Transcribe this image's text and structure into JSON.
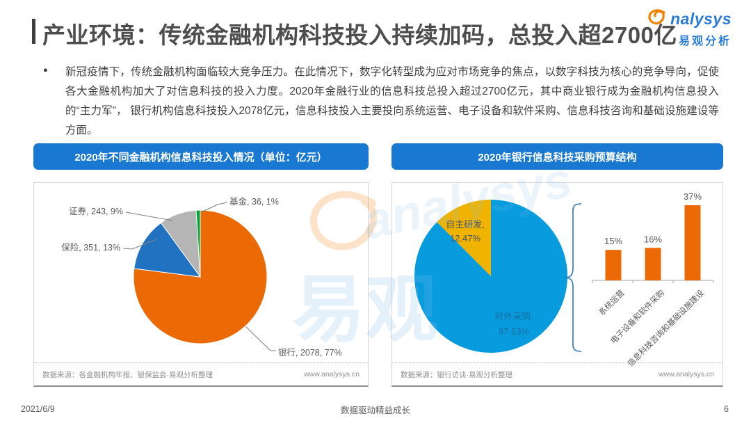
{
  "page": {
    "title": "产业环境：传统金融机构科技投入持续加码，总投入超2700亿",
    "logo": {
      "brand": "nalysys",
      "brand_cn": "易观分析"
    },
    "bullet_text": "新冠疫情下，传统金融机构面临较大竞争压力。在此情况下，数字化转型成为应对市场竞争的焦点，以数字科技为核心的竞争导向，促使各大金融机构加大了对信息科技的投入力度。2020年金融行业的信息科技总投入超过2700亿元，其中商业银行成为金融机构信息投入的“主力军”， 银行机构信息科技投入2078亿元，信息科技投入主要投向系统运营、电子设备和软件采购、信息科技咨询和基础设施建设等方面。",
    "footer": {
      "date": "2021/6/9",
      "slogan": "数据驱动精益成长",
      "page_number": "6"
    },
    "watermark_cn": "易观",
    "watermark_en": "analysys"
  },
  "chart_data": [
    {
      "type": "pie",
      "title": "2020年不同金融机构信息科技投入情况（单位：亿元）",
      "unit": "亿元",
      "slices": [
        {
          "label": "银行",
          "value": 2078,
          "pct": 77,
          "color": "#EB6A05",
          "display": "银行, 2078, 77%"
        },
        {
          "label": "保险",
          "value": 351,
          "pct": 13,
          "color": "#2173C2",
          "display": "保险, 351, 13%"
        },
        {
          "label": "证券",
          "value": 243,
          "pct": 9,
          "color": "#B5B5B5",
          "display": "证券, 243, 9%"
        },
        {
          "label": "基金",
          "value": 36,
          "pct": 1,
          "color": "#00A640",
          "display": "基金, 36, 1%"
        }
      ],
      "source": "数据来源：各金融机构年报、银保监会·易观分析整理",
      "website": "www.analysys.cn"
    },
    {
      "type": "pie+bar",
      "title": "2020年银行信息科技采购预算结构",
      "pie_slices": [
        {
          "label": "对外采购",
          "pct": 87.53,
          "color": "#089CDF",
          "display": "对外采购, 87.53%",
          "text_color": "#156e9e"
        },
        {
          "label": "自主研发",
          "pct": 12.47,
          "color": "#F0B400",
          "display": "自主研发, 12.47%",
          "text_color": "#44546A"
        }
      ],
      "bars": {
        "categories": [
          "系统运营",
          "电子设备和软件采购",
          "信息科技咨询和基础设施建设"
        ],
        "values": [
          15,
          16,
          37
        ],
        "unit": "%",
        "color": "#EB6A05",
        "label_format": "percent"
      },
      "source": "数据来源：银行访谈·易观分析整理",
      "website": "www.analysys.cn"
    }
  ]
}
